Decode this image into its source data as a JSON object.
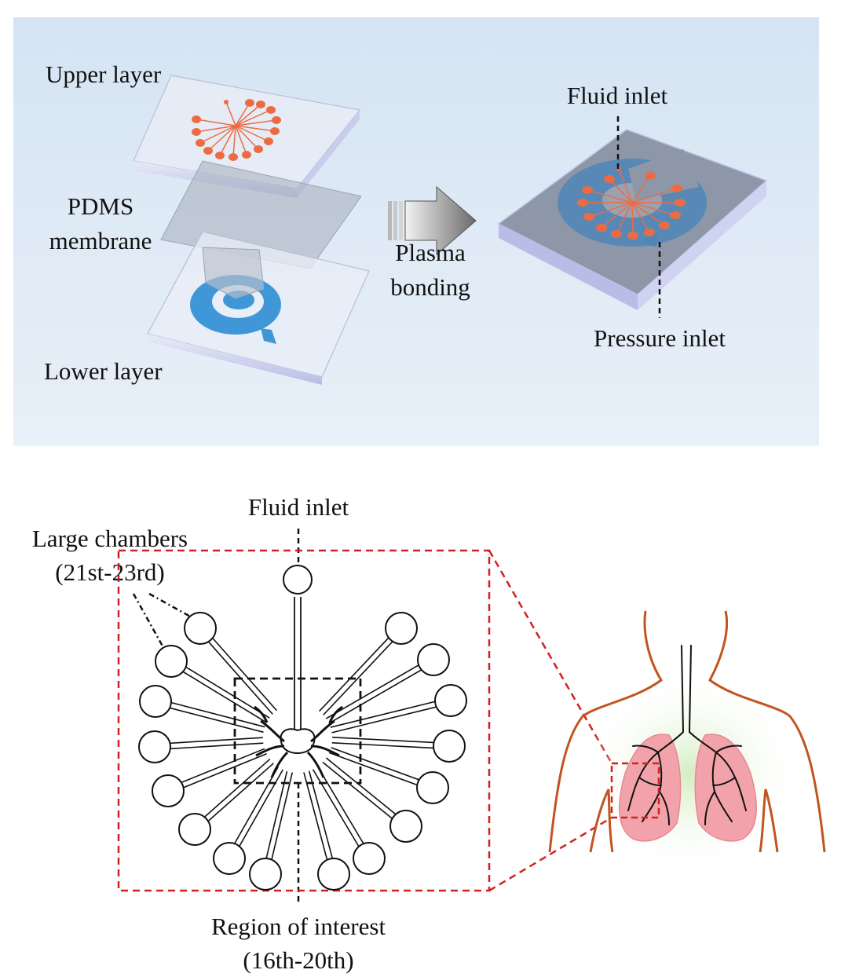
{
  "top_panel": {
    "upper_layer": "Upper layer",
    "pdms_line1": "PDMS",
    "pdms_line2": "membrane",
    "lower_layer": "Lower layer",
    "plasma_line1": "Plasma",
    "plasma_line2": "bonding",
    "fluid_inlet": "Fluid inlet",
    "pressure_inlet": "Pressure inlet"
  },
  "bottom_panel": {
    "fluid_inlet": "Fluid inlet",
    "large_chambers_line1": "Large chambers",
    "large_chambers_line2": "(21st-23rd)",
    "roi_line1": "Region of interest",
    "roi_line2": "(16th-20th)"
  },
  "colors": {
    "panel_bg": "#dfeaf6",
    "chamber_orange": "#ec6b43",
    "lower_channel_blue": "#3f97d8",
    "zoom_red": "#d42020",
    "body_outline": "#c2541f",
    "lung_pink": "#f2a2aa"
  }
}
